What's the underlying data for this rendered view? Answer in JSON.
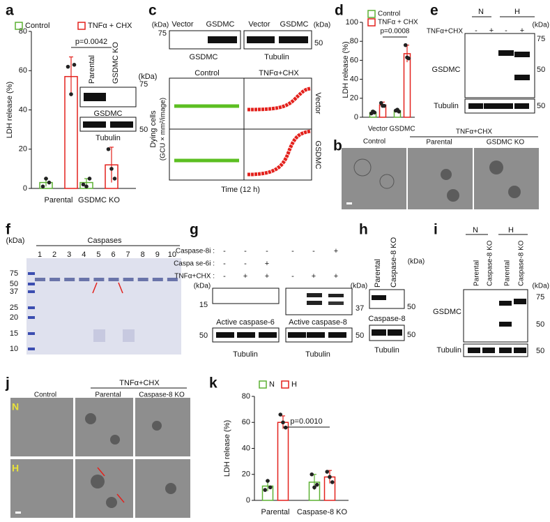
{
  "panel_letters": [
    "a",
    "b",
    "c",
    "d",
    "e",
    "f",
    "g",
    "h",
    "i",
    "j",
    "k"
  ],
  "chart_data": [
    {
      "type": "bar",
      "ylabel": "LDH release (%)",
      "categories": [
        "Parental",
        "GSDMC KO"
      ],
      "series": [
        {
          "name": "Control",
          "color": "#5cb132",
          "values": [
            3,
            3
          ],
          "errors": [
            2,
            2
          ],
          "points": [
            [
              1,
              5,
              3
            ],
            [
              2,
              1,
              5
            ]
          ]
        },
        {
          "name": "TNFα + CHX",
          "color": "#e3211c",
          "values": [
            57,
            12
          ],
          "errors": [
            10,
            9
          ],
          "points": [
            [
              62,
              48,
              63
            ],
            [
              20,
              10,
              5
            ]
          ]
        }
      ],
      "ylim": [
        0,
        80
      ],
      "yticks": [
        0,
        20,
        40,
        60,
        80
      ],
      "annotation": "p=0.0042"
    },
    {
      "type": "bar",
      "ylabel": "LDH release (%)",
      "categories": [
        "Vector",
        "GSDMC"
      ],
      "series": [
        {
          "name": "Control",
          "color": "#5cb132",
          "values": [
            5,
            7
          ],
          "errors": [
            2,
            1
          ],
          "points": [
            [
              4,
              6,
              5
            ],
            [
              7,
              8,
              6
            ]
          ]
        },
        {
          "name": "TNFα + CHX",
          "color": "#e3211c",
          "values": [
            13,
            67
          ],
          "errors": [
            3,
            9
          ],
          "points": [
            [
              15,
              12,
              12
            ],
            [
              76,
              63,
              62
            ]
          ]
        }
      ],
      "ylim": [
        0,
        100
      ],
      "yticks": [
        0,
        20,
        40,
        60,
        80,
        100
      ],
      "annotation": "p=0.0008"
    },
    {
      "type": "bar",
      "ylabel": "LDH release (%)",
      "categories": [
        "Parental",
        "Caspase-8 KO"
      ],
      "series": [
        {
          "name": "N",
          "color": "#5cb132",
          "values": [
            11,
            14
          ],
          "errors": [
            4,
            6
          ],
          "points": [
            [
              8,
              15,
              10
            ],
            [
              20,
              10,
              12
            ]
          ]
        },
        {
          "name": "H",
          "color": "#e3211c",
          "values": [
            60,
            18
          ],
          "errors": [
            5,
            5
          ],
          "points": [
            [
              66,
              60,
              56
            ],
            [
              22,
              18,
              14
            ]
          ]
        }
      ],
      "ylim": [
        0,
        80
      ],
      "yticks": [
        0,
        20,
        40,
        60,
        80
      ],
      "annotation": "p=0.0010"
    }
  ],
  "a_blot": {
    "lanes": [
      "Parental",
      "GSDMC KO"
    ],
    "unit": "(kDa)",
    "markers": [
      75,
      50
    ],
    "bands": [
      "GSDMC",
      "Tubulin"
    ]
  },
  "c": {
    "unit": "(kDa)",
    "lanes": [
      "Vector",
      "GSDMC",
      "Vector",
      "GSDMC"
    ],
    "markers": [
      75,
      50
    ],
    "bands": [
      "GSDMC",
      "Tubulin"
    ],
    "columns": [
      "Control",
      "TNFα+CHX"
    ],
    "rows": [
      "Vector",
      "GSDMC"
    ],
    "ylabel": [
      "Dying cells",
      "(GCU × mm²/image)"
    ],
    "xlabel": "Time (12 h)"
  },
  "e": {
    "groups": [
      "N",
      "H"
    ],
    "treatment": "TNFα+CHX",
    "signs": [
      "-",
      "+",
      "-",
      "+"
    ],
    "unit": "(kDa)",
    "markers": [
      75,
      50,
      50
    ],
    "bands": [
      "GSDMC",
      "Tubulin"
    ]
  },
  "b": {
    "columns": [
      "Control",
      "Parental",
      "GSDMC KO"
    ],
    "treatment": "TNFα+CHX"
  },
  "f": {
    "unit": "(kDa)",
    "title": "Caspases",
    "lanes": [
      1,
      2,
      3,
      4,
      5,
      6,
      7,
      8,
      9,
      10
    ],
    "ladder": [
      75,
      50,
      37,
      25,
      20,
      15,
      10
    ]
  },
  "g": {
    "rows": [
      {
        "label": "Caspase-8i :",
        "signs": [
          "-",
          "-",
          "-",
          "-",
          "-",
          "+"
        ]
      },
      {
        "label": "Caspa se-6i :",
        "signs": [
          "-",
          "-",
          "+"
        ]
      },
      {
        "label": "TNFα+CHX :",
        "signs": [
          "-",
          "+",
          "+",
          "-",
          "+",
          "+"
        ]
      }
    ],
    "unit": "(kDa)",
    "markers": [
      15,
      37,
      50,
      50
    ],
    "bands": [
      "Active caspase-6",
      "Active caspase-8"
    ],
    "loading": "Tubulin"
  },
  "h": {
    "lanes": [
      "Parental",
      "Caspase-8 KO"
    ],
    "unit": "(kDa)",
    "markers": [
      50,
      50
    ],
    "bands": [
      "Caspase-8",
      "Tubulin"
    ]
  },
  "i": {
    "groups": [
      "N",
      "H"
    ],
    "lanes": [
      "Parental",
      "Caspase-8 KO",
      "Parental",
      "Caspase-8 KO"
    ],
    "unit": "(kDa)",
    "markers": [
      75,
      50,
      50
    ],
    "bands": [
      "GSDMC",
      "Tubulin"
    ]
  },
  "j": {
    "columns": [
      "Control",
      "Parental",
      "Caspase-8 KO"
    ],
    "treatment": "TNFα+CHX",
    "rows": [
      "N",
      "H"
    ]
  }
}
